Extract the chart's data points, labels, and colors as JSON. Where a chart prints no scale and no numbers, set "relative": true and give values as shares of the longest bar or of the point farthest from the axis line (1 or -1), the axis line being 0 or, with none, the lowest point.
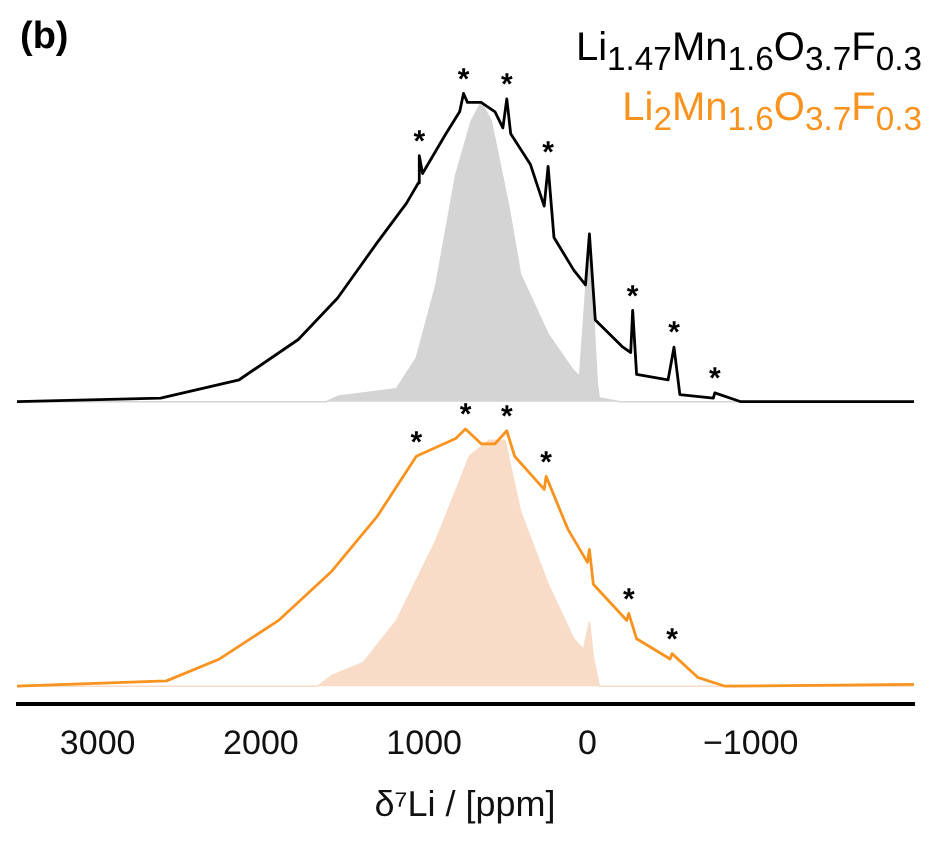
{
  "chart_data": {
    "type": "line",
    "title": "(b)",
    "xlabel": "δ⁷Li / [ppm]",
    "relative": true,
    "legend": "top right",
    "grid": false,
    "marker": "none",
    "line_style": "solid",
    "xlim": [
      3500,
      -2000
    ],
    "xticks": [
      3000,
      2000,
      1000,
      0,
      {
        "value": -1000,
        "label": "−1000"
      }
    ],
    "series": [
      {
        "name": "Li$_{1.47}$Mn$_{1.6}$O$_{3.7}$F$_{0.3}$",
        "color": "#000000",
        "x": [
          3494,
          2614,
          2133,
          1771,
          1530,
          1289,
          1108,
          1036,
          1030,
          1010,
          867,
          783,
          759,
          735,
          651,
          566,
          518,
          494,
          470,
          349,
          265,
          241,
          205,
          84,
          12,
          -12,
          -48,
          -217,
          -265,
          -277,
          -301,
          -494,
          -530,
          -566,
          -771,
          -780,
          -940,
          -2000
        ],
        "values": [
          0.48,
          0.486,
          0.517,
          0.585,
          0.655,
          0.748,
          0.815,
          0.849,
          0.895,
          0.865,
          0.932,
          0.969,
          1.0,
          0.985,
          0.985,
          0.969,
          0.942,
          0.991,
          0.932,
          0.88,
          0.81,
          0.877,
          0.757,
          0.702,
          0.677,
          0.763,
          0.618,
          0.572,
          0.563,
          0.634,
          0.526,
          0.517,
          0.572,
          0.492,
          0.486,
          0.495,
          0.48,
          0.48
        ]
      },
      {
        "type": "area",
        "color": "#d4d4d4",
        "x": [
          3494,
          1600,
          1530,
          1169,
          1048,
          928,
          807,
          711,
          651,
          590,
          482,
          410,
          241,
          84,
          48,
          -12,
          -60,
          -72,
          -200,
          -2000
        ],
        "values": [
          0.48,
          0.48,
          0.489,
          0.502,
          0.554,
          0.677,
          0.862,
          0.954,
          0.985,
          0.954,
          0.81,
          0.695,
          0.594,
          0.532,
          0.523,
          0.757,
          0.511,
          0.486,
          0.48,
          0.48
        ]
      },
      {
        "name": "Li$_{2}$Mn$_{1.6}$O$_{3.7}$F$_{0.3}$",
        "color": "#f7931e",
        "x": [
          3494,
          2578,
          2253,
          1892,
          1566,
          1289,
          1048,
          807,
          747,
          651,
          566,
          494,
          446,
          265,
          253,
          120,
          0,
          -12,
          -36,
          -241,
          -253,
          -301,
          -506,
          -518,
          -675,
          -843,
          -2000
        ],
        "values": [
          0,
          0.009,
          0.046,
          0.111,
          0.194,
          0.286,
          0.388,
          0.418,
          0.434,
          0.409,
          0.409,
          0.431,
          0.388,
          0.332,
          0.354,
          0.265,
          0.209,
          0.231,
          0.172,
          0.111,
          0.123,
          0.08,
          0.046,
          0.055,
          0.015,
          0,
          0.003
        ]
      },
      {
        "type": "area",
        "color": "#f9dcc8",
        "x": [
          3494,
          1651,
          1566,
          1373,
          1169,
          928,
          723,
          602,
          506,
          410,
          241,
          84,
          24,
          -12,
          -36,
          -72,
          -2000
        ],
        "values": [
          0,
          0,
          0.018,
          0.04,
          0.111,
          0.246,
          0.388,
          0.415,
          0.415,
          0.295,
          0.172,
          0.08,
          0.062,
          0.108,
          0.049,
          0,
          0
        ]
      }
    ],
    "annotations": [
      {
        "text": "*",
        "x": 1030,
        "y": 0.895
      },
      {
        "text": "*",
        "x": 759,
        "y": 1.0
      },
      {
        "text": "*",
        "x": 494,
        "y": 0.991
      },
      {
        "text": "*",
        "x": 241,
        "y": 0.877
      },
      {
        "text": "*",
        "x": -277,
        "y": 0.634
      },
      {
        "text": "*",
        "x": -530,
        "y": 0.572
      },
      {
        "text": "*",
        "x": -780,
        "y": 0.495
      },
      {
        "text": "*",
        "x": 1048,
        "y": 0.388
      },
      {
        "text": "*",
        "x": 747,
        "y": 0.434
      },
      {
        "text": "*",
        "x": 494,
        "y": 0.431
      },
      {
        "text": "*",
        "x": 253,
        "y": 0.354
      },
      {
        "text": "*",
        "x": -253,
        "y": 0.123
      },
      {
        "text": "*",
        "x": -518,
        "y": 0.055
      }
    ]
  }
}
